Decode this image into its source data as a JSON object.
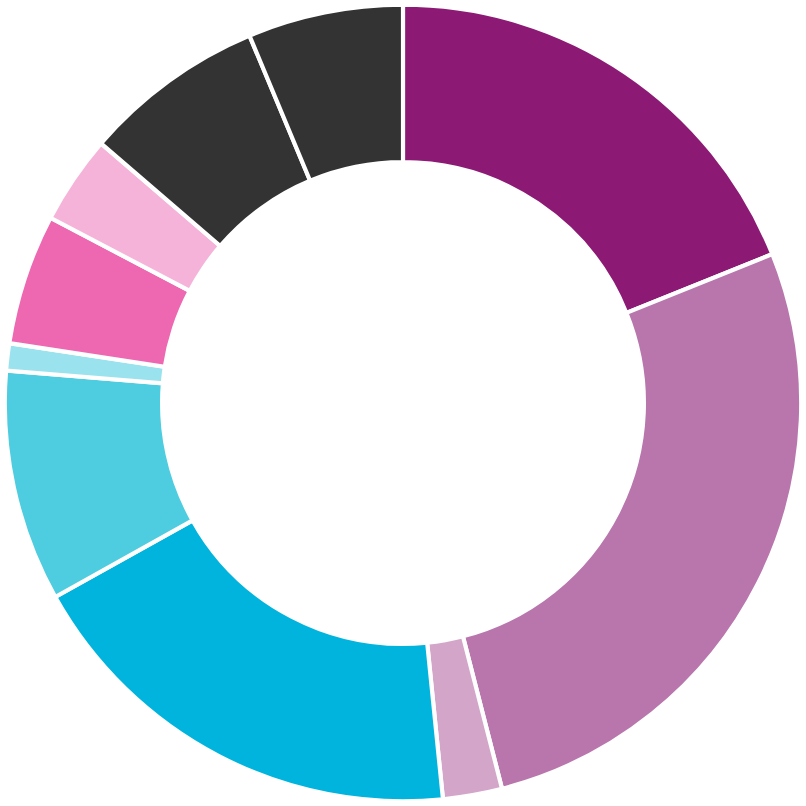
{
  "chart_data": {
    "type": "donut",
    "categories": [
      null,
      null,
      null,
      null,
      null,
      null,
      null,
      null,
      null,
      null
    ],
    "values": [
      18.9,
      27.1,
      2.4,
      18.5,
      9.4,
      1.1,
      5.3,
      3.6,
      7.4,
      6.3
    ],
    "colors": [
      "#8c1a74",
      "#b876ad",
      "#d3a5c9",
      "#00b4de",
      "#4ecde0",
      "#9ae3ee",
      "#ee67b1",
      "#f6b3d9",
      "#333333",
      "#333333"
    ]
  }
}
